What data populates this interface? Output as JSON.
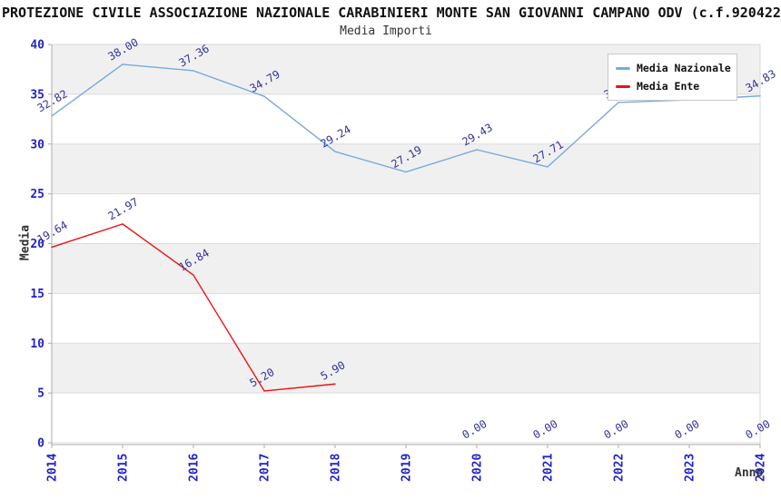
{
  "header": {
    "title": "PROTEZIONE CIVILE ASSOCIAZIONE NAZIONALE CARABINIERI MONTE SAN GIOVANNI CAMPANO ODV (c.f.920422",
    "subtitle": "Media Importi"
  },
  "chart_data": {
    "type": "line",
    "title": "Media Importi",
    "xlabel": "Anno",
    "ylabel": "Media",
    "x": [
      "2014",
      "2015",
      "2016",
      "2017",
      "2018",
      "2019",
      "2020",
      "2021",
      "2022",
      "2023",
      "2024"
    ],
    "ylim": [
      0,
      40
    ],
    "yticks": [
      0,
      5,
      10,
      15,
      20,
      25,
      30,
      35,
      40
    ],
    "grid": "horizontal gridlines every 5 units with alternating light-gray bands",
    "legend_position": "top-right",
    "series": [
      {
        "name": "Media Nazionale",
        "color": "#78aad9",
        "values": [
          32.82,
          38.0,
          37.36,
          34.79,
          29.24,
          27.19,
          29.43,
          27.71,
          34.17,
          34.44,
          34.83
        ]
      },
      {
        "name": "Media Ente",
        "color": "#ee1111",
        "values": [
          19.64,
          21.97,
          16.84,
          5.2,
          5.9,
          null,
          0.0,
          0.0,
          0.0,
          0.0,
          0.0
        ],
        "zero_line_hidden": true
      }
    ]
  },
  "style": {
    "band_color": "#f0f0f0",
    "gridline_color": "#dcdcdc",
    "axis_color": "#ababab",
    "plot_border_color": "#d9d9d9",
    "tick_label_color": "#2222cc",
    "point_label_color": "#333399"
  }
}
